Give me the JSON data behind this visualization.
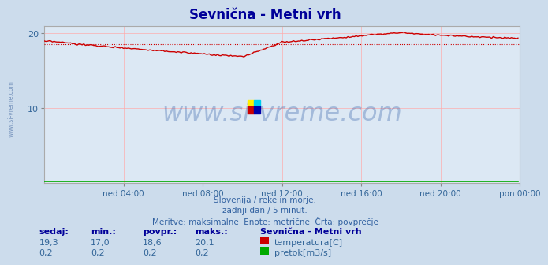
{
  "title": "Sevnična - Metni vrh",
  "title_color": "#000099",
  "bg_color": "#ccdcec",
  "plot_bg_color": "#dce8f4",
  "grid_color": "#ffaaaa",
  "xlim": [
    0,
    288
  ],
  "ylim": [
    0,
    21
  ],
  "yticks": [
    10,
    20
  ],
  "ytick_labels": [
    "10",
    "20"
  ],
  "xtick_labels": [
    "ned 04:00",
    "ned 08:00",
    "ned 12:00",
    "ned 16:00",
    "ned 20:00",
    "pon 00:00"
  ],
  "xtick_positions": [
    48,
    96,
    144,
    192,
    240,
    288
  ],
  "temp_avg": 18.6,
  "temp_color": "#cc0000",
  "flow_color": "#00aa00",
  "watermark_text": "www.si-vreme.com",
  "watermark_color": "#2050a0",
  "watermark_alpha": 0.3,
  "footer_line1": "Slovenija / reke in morje.",
  "footer_line2": "zadnji dan / 5 minut.",
  "footer_line3": "Meritve: maksimalne  Enote: metrične  Črta: povprečje",
  "footer_color": "#3060a0",
  "table_headers": [
    "sedaj:",
    "min.:",
    "povpr.:",
    "maks.:"
  ],
  "table_temp": [
    "19,3",
    "17,0",
    "18,6",
    "20,1"
  ],
  "table_flow": [
    "0,2",
    "0,2",
    "0,2",
    "0,2"
  ],
  "legend_name": "Sevnična - Metni vrh",
  "legend_temp": "temperatura[C]",
  "legend_flow": "pretok[m3/s]",
  "left_label": "www.si-vreme.com"
}
